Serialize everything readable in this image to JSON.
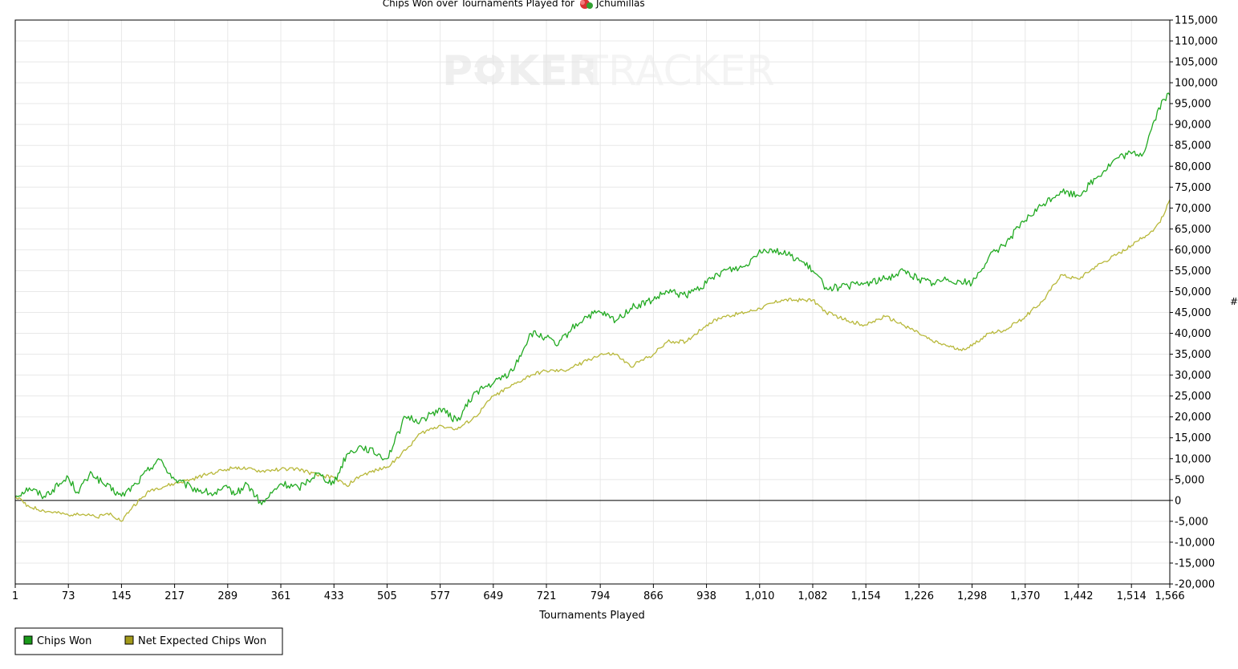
{
  "chart_data": {
    "type": "line",
    "title": "Chips Won over Tournaments Played for",
    "title_player": "Jchumillas",
    "xlabel": "Tournaments Played",
    "ylabel": "#",
    "watermark": {
      "part1": "P",
      "part2": "KER",
      "part3": "TRACKER"
    },
    "xlim": [
      1,
      1566
    ],
    "ylim": [
      -20000,
      115000
    ],
    "x_ticks": [
      1,
      73,
      145,
      217,
      289,
      361,
      433,
      505,
      577,
      649,
      721,
      794,
      866,
      938,
      1010,
      1082,
      1154,
      1226,
      1298,
      1370,
      1442,
      1514,
      1566
    ],
    "x_tick_labels": [
      "1",
      "73",
      "145",
      "217",
      "289",
      "361",
      "433",
      "505",
      "577",
      "649",
      "721",
      "794",
      "866",
      "938",
      "1,010",
      "1,082",
      "1,154",
      "1,226",
      "1,298",
      "1,370",
      "1,442",
      "1,514",
      "1,566"
    ],
    "y_ticks": [
      -20000,
      -15000,
      -10000,
      -5000,
      0,
      5000,
      10000,
      15000,
      20000,
      25000,
      30000,
      35000,
      40000,
      45000,
      50000,
      55000,
      60000,
      65000,
      70000,
      75000,
      80000,
      85000,
      90000,
      95000,
      100000,
      105000,
      110000,
      115000
    ],
    "y_tick_labels": [
      "-20,000",
      "-15,000",
      "-10,000",
      "-5,000",
      "0",
      "5,000",
      "10,000",
      "15,000",
      "20,000",
      "25,000",
      "30,000",
      "35,000",
      "40,000",
      "45,000",
      "50,000",
      "55,000",
      "60,000",
      "65,000",
      "70,000",
      "75,000",
      "80,000",
      "85,000",
      "90,000",
      "95,000",
      "100,000",
      "105,000",
      "110,000",
      "115,000"
    ],
    "grid": true,
    "legend_position": "bottom-left",
    "series": [
      {
        "name": "Chips Won",
        "color": "#22aa22",
        "legend_color": "#1a9a1a",
        "x": [
          1,
          20,
          40,
          73,
          85,
          105,
          120,
          145,
          165,
          195,
          217,
          240,
          270,
          289,
          300,
          315,
          335,
          361,
          385,
          410,
          433,
          450,
          470,
          505,
          530,
          550,
          577,
          600,
          625,
          649,
          675,
          700,
          721,
          735,
          755,
          775,
          794,
          815,
          835,
          866,
          885,
          910,
          938,
          960,
          990,
          1010,
          1030,
          1060,
          1082,
          1100,
          1120,
          1154,
          1180,
          1205,
          1226,
          1245,
          1265,
          1298,
          1320,
          1345,
          1370,
          1395,
          1418,
          1442,
          1465,
          1495,
          1514,
          1530,
          1545,
          1557,
          1566
        ],
        "values": [
          1000,
          3000,
          1000,
          5500,
          2000,
          6500,
          4000,
          1000,
          4000,
          10000,
          5000,
          3000,
          1500,
          3000,
          1500,
          4000,
          -1000,
          4000,
          3000,
          6500,
          4000,
          11000,
          13000,
          10000,
          20000,
          19000,
          22000,
          19000,
          26000,
          28000,
          31000,
          40000,
          39000,
          37000,
          41000,
          44000,
          45000,
          43000,
          46000,
          48000,
          50000,
          49000,
          52000,
          55000,
          56000,
          60000,
          60000,
          58000,
          55000,
          51000,
          51000,
          52000,
          53000,
          55000,
          53000,
          52000,
          53000,
          52000,
          58000,
          62000,
          67000,
          71000,
          74000,
          73000,
          77000,
          82000,
          83000,
          83000,
          91000,
          96000,
          97000
        ]
      },
      {
        "name": "Net Expected Chips Won",
        "color": "#b8b83a",
        "legend_color": "#a39a1a",
        "x": [
          1,
          20,
          40,
          73,
          85,
          110,
          130,
          145,
          160,
          185,
          217,
          240,
          265,
          289,
          300,
          315,
          335,
          361,
          385,
          410,
          433,
          450,
          470,
          505,
          530,
          550,
          577,
          600,
          625,
          649,
          670,
          700,
          721,
          745,
          770,
          794,
          815,
          835,
          866,
          885,
          910,
          938,
          960,
          990,
          1010,
          1040,
          1060,
          1082,
          1100,
          1130,
          1154,
          1180,
          1205,
          1226,
          1245,
          1265,
          1280,
          1298,
          1320,
          1345,
          1370,
          1395,
          1418,
          1442,
          1465,
          1495,
          1514,
          1530,
          1545,
          1557,
          1566
        ],
        "values": [
          1000,
          -1500,
          -2500,
          -3500,
          -3000,
          -4000,
          -3000,
          -5000,
          -1500,
          2500,
          4000,
          5000,
          6500,
          7500,
          8000,
          7500,
          7000,
          7500,
          7500,
          6000,
          5500,
          3500,
          6000,
          8000,
          12000,
          16000,
          18000,
          17000,
          20000,
          25000,
          27000,
          30000,
          31000,
          31000,
          33000,
          35000,
          35000,
          32000,
          35000,
          38000,
          38000,
          42000,
          44000,
          45000,
          46000,
          48000,
          48000,
          48000,
          45000,
          43000,
          42000,
          44000,
          42000,
          40000,
          38000,
          37000,
          36000,
          37000,
          40000,
          41000,
          44000,
          48000,
          54000,
          53000,
          56000,
          59000,
          61000,
          63000,
          65000,
          68000,
          72000
        ]
      }
    ]
  }
}
